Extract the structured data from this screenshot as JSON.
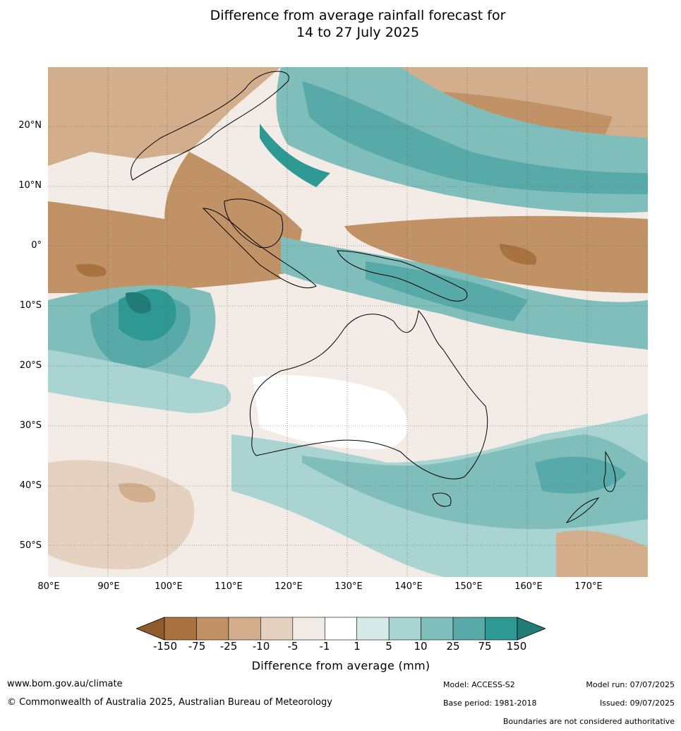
{
  "title_line1": "Difference from average rainfall forecast for",
  "title_line2": "14 to 27 July 2025",
  "map": {
    "lat_labels": [
      "20°N",
      "10°N",
      "0°",
      "10°S",
      "20°S",
      "30°S",
      "40°S",
      "50°S"
    ],
    "lon_labels": [
      "80°E",
      "90°E",
      "100°E",
      "110°E",
      "120°E",
      "130°E",
      "140°E",
      "150°E",
      "160°E",
      "170°E"
    ]
  },
  "legend": {
    "title": "Difference from average (mm)",
    "ticks": [
      "-150",
      "-75",
      "-25",
      "-10",
      "-5",
      "-1",
      "1",
      "5",
      "10",
      "25",
      "75",
      "150"
    ],
    "colors": [
      "#a8733e",
      "#c09266",
      "#d2ae8d",
      "#e5d1c0",
      "#f3ebe6",
      "#ffffff",
      "#d6eae9",
      "#a9d4d2",
      "#80bebc",
      "#58aaa8",
      "#2e9893"
    ],
    "end_low_color": "#8f5a2c",
    "end_high_color": "#217b77"
  },
  "footer": {
    "url": "www.bom.gov.au/climate",
    "copyright": "© Commonwealth of Australia 2025, Australian Bureau of Meteorology",
    "model": "Model: ACCESS-S2",
    "base_period": "Base period: 1981-2018",
    "model_run": "Model run: 07/07/2025",
    "issued": "Issued: 09/07/2025",
    "disclaimer": "Boundaries are not considered authoritative"
  }
}
